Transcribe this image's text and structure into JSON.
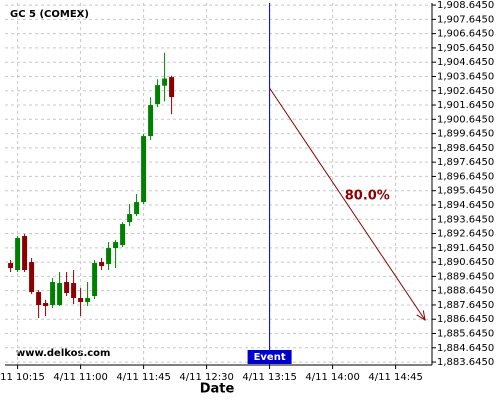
{
  "chart_data": {
    "type": "candlestick",
    "title": "GC 5 (COMEX)",
    "xlabel": "Date",
    "watermark": "www.delkos.com",
    "x": [
      "4/11 10:10",
      "4/11 10:15",
      "4/11 10:20",
      "4/11 10:25",
      "4/11 10:30",
      "4/11 10:35",
      "4/11 10:40",
      "4/11 10:45",
      "4/11 10:50",
      "4/11 10:55",
      "4/11 11:00",
      "4/11 11:05",
      "4/11 11:10",
      "4/11 11:15",
      "4/11 11:20",
      "4/11 11:25",
      "4/11 11:30",
      "4/11 11:35",
      "4/11 11:40",
      "4/11 11:45",
      "4/11 11:50",
      "4/11 11:55",
      "4/11 12:00",
      "4/11 12:05"
    ],
    "open": [
      1890.58,
      1890.09,
      1892.47,
      1890.65,
      1888.55,
      1887.78,
      1887.64,
      1887.64,
      1889.25,
      1889.18,
      1888.13,
      1887.85,
      1888.27,
      1890.65,
      1890.51,
      1891.63,
      1891.84,
      1893.45,
      1894.01,
      1894.85,
      1899.47,
      1901.71,
      1903.0,
      1903.6
    ],
    "high": [
      1890.79,
      1892.47,
      1892.61,
      1890.93,
      1888.69,
      1888.0,
      1889.53,
      1889.95,
      1889.95,
      1890.09,
      1888.83,
      1889.25,
      1890.79,
      1890.93,
      1892.05,
      1892.19,
      1893.45,
      1894.71,
      1895.41,
      1899.61,
      1902.19,
      1903.45,
      1905.3,
      1903.7
    ],
    "low": [
      1889.95,
      1889.95,
      1889.95,
      1888.41,
      1886.73,
      1886.87,
      1887.43,
      1887.57,
      1888.27,
      1887.71,
      1886.87,
      1887.57,
      1888.06,
      1890.09,
      1890.09,
      1890.23,
      1891.7,
      1893.17,
      1893.87,
      1894.71,
      1899.19,
      1901.5,
      1901.9,
      1901.0
    ],
    "close": [
      1890.23,
      1892.33,
      1890.09,
      1888.55,
      1887.64,
      1887.57,
      1889.25,
      1889.18,
      1888.48,
      1888.13,
      1887.85,
      1888.13,
      1890.58,
      1890.37,
      1891.63,
      1892.05,
      1893.31,
      1894.01,
      1894.85,
      1899.47,
      1901.64,
      1903.04,
      1903.5,
      1902.2
    ],
    "up_color": "#008000",
    "down_color": "#8b0000",
    "xlim": [
      "4/11 10:06",
      "4/11 15:11"
    ],
    "xticks": [
      "4/11 10:15",
      "4/11 11:00",
      "4/11 11:45",
      "4/11 12:30",
      "4/11 13:15",
      "4/11 14:00",
      "4/11 14:45"
    ],
    "ylim": [
      1883.44,
      1908.79
    ],
    "yticks": [
      {
        "value": 1883.645,
        "label": "1,883.6450"
      },
      {
        "value": 1884.645,
        "label": "1,884.6450"
      },
      {
        "value": 1885.645,
        "label": "1,885.6450"
      },
      {
        "value": 1886.645,
        "label": "1,886.6450"
      },
      {
        "value": 1887.645,
        "label": "1,887.6450"
      },
      {
        "value": 1888.645,
        "label": "1,888.6450"
      },
      {
        "value": 1889.645,
        "label": "1,889.6450"
      },
      {
        "value": 1890.645,
        "label": "1,890.6450"
      },
      {
        "value": 1891.645,
        "label": "1,891.6450"
      },
      {
        "value": 1892.645,
        "label": "1,892.6450"
      },
      {
        "value": 1893.645,
        "label": "1,893.6450"
      },
      {
        "value": 1894.645,
        "label": "1,894.6450"
      },
      {
        "value": 1895.645,
        "label": "1,895.6450"
      },
      {
        "value": 1896.645,
        "label": "1,896.6450"
      },
      {
        "value": 1897.645,
        "label": "1,897.6450"
      },
      {
        "value": 1898.645,
        "label": "1,898.6450"
      },
      {
        "value": 1899.645,
        "label": "1,899.6450"
      },
      {
        "value": 1900.645,
        "label": "1,900.6450"
      },
      {
        "value": 1901.645,
        "label": "1,901.6450"
      },
      {
        "value": 1902.645,
        "label": "1,902.6450"
      },
      {
        "value": 1903.645,
        "label": "1,903.6450"
      },
      {
        "value": 1904.645,
        "label": "1,904.6450"
      },
      {
        "value": 1905.645,
        "label": "1,905.6450"
      },
      {
        "value": 1906.645,
        "label": "1,906.6450"
      },
      {
        "value": 1907.645,
        "label": "1,907.6450"
      },
      {
        "value": 1908.645,
        "label": "1,908.6450"
      }
    ],
    "grid": true,
    "event": {
      "x": "4/11 13:15",
      "label": "Event",
      "color": "#0000cc"
    },
    "arrow": {
      "x": [
        "4/11 13:15",
        "4/11 15:06"
      ],
      "y": [
        1902.83,
        1886.59
      ],
      "label": "80.0%",
      "color": "#8b0000"
    }
  }
}
